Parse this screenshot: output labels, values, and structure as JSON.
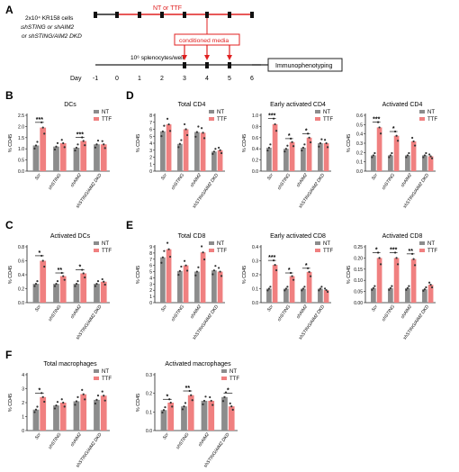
{
  "colors": {
    "nt": "#8c8c8c",
    "ttf": "#f08080",
    "timeline_red": "#e02020",
    "axis": "#222222"
  },
  "panel_letters": {
    "A": "A",
    "B": "B",
    "C": "C",
    "D": "D",
    "E": "E",
    "F": "F"
  },
  "schematic": {
    "cells_line1": "2x10⁴ KR158 cells",
    "cells_line2": "shSTING or shAIM2",
    "cells_line3": "or shSTING/AIM2 DKD",
    "treatment": "NT or TTF",
    "conditioned": "conditioned media",
    "splenocytes": "10⁶ splenocytes/well",
    "immuno": "Immunophenotyping",
    "day_label": "Day",
    "days": [
      "-1",
      "0",
      "1",
      "2",
      "3",
      "4",
      "5",
      "6"
    ]
  },
  "legend": {
    "nt": "NT",
    "ttf": "TTF"
  },
  "ylabel_pct": "% CD45",
  "categories": [
    "Scr",
    "shSTING",
    "shAIM2",
    "shSTING/AIM2 DKD"
  ],
  "chart_data": [
    {
      "id": "B1",
      "type": "bar",
      "title": "DCs",
      "ylabel": "% CD45",
      "ylim": [
        0,
        2.5
      ],
      "yticks": [
        "0.0",
        "0.5",
        "1.0",
        "1.5",
        "2.0",
        "2.5"
      ],
      "categories": [
        "Scr",
        "shSTING",
        "shAIM2",
        "shSTING/AIM2 DKD"
      ],
      "series": [
        {
          "name": "NT",
          "values": [
            1.15,
            1.1,
            1.05,
            1.2
          ]
        },
        {
          "name": "TTF",
          "values": [
            1.95,
            1.25,
            1.35,
            1.2
          ]
        }
      ],
      "significance": [
        {
          "group": 0,
          "label": "***"
        },
        {
          "group": 2,
          "label": "***"
        }
      ]
    },
    {
      "id": "C1",
      "type": "bar",
      "title": "Activated DCs",
      "ylabel": "% CD45",
      "ylim": [
        0,
        0.8
      ],
      "yticks": [
        "0.0",
        "0.2",
        "0.4",
        "0.6",
        "0.8"
      ],
      "categories": [
        "Scr",
        "shSTING",
        "shAIM2",
        "shSTING/AIM2 DKD"
      ],
      "series": [
        {
          "name": "NT",
          "values": [
            0.27,
            0.27,
            0.27,
            0.27
          ]
        },
        {
          "name": "TTF",
          "values": [
            0.6,
            0.38,
            0.42,
            0.3
          ]
        }
      ],
      "significance": [
        {
          "group": 0,
          "label": "*"
        },
        {
          "group": 1,
          "label": "**"
        },
        {
          "group": 2,
          "label": "*"
        }
      ]
    },
    {
      "id": "D1",
      "type": "bar",
      "title": "Total CD4",
      "ylabel": "% CD45",
      "ylim": [
        0,
        8
      ],
      "yticks": [
        "0",
        "1",
        "2",
        "3",
        "4",
        "5",
        "6",
        "7",
        "8"
      ],
      "categories": [
        "Scr",
        "shSTING",
        "shAIM2",
        "shSTING/AIM2 DKD"
      ],
      "series": [
        {
          "name": "NT",
          "values": [
            5.7,
            3.9,
            5.6,
            2.8
          ]
        },
        {
          "name": "TTF",
          "values": [
            6.7,
            6.0,
            5.5,
            3.0
          ]
        }
      ],
      "significance": []
    },
    {
      "id": "D2",
      "type": "bar",
      "title": "Early activated CD4",
      "ylabel": "% CD45",
      "ylim": [
        0,
        1.0
      ],
      "yticks": [
        "0.0",
        "0.2",
        "0.4",
        "0.6",
        "0.8",
        "1.0"
      ],
      "categories": [
        "Scr",
        "shSTING",
        "shAIM2",
        "shSTING/AIM2 DKD"
      ],
      "series": [
        {
          "name": "NT",
          "values": [
            0.42,
            0.4,
            0.42,
            0.5
          ]
        },
        {
          "name": "TTF",
          "values": [
            0.84,
            0.52,
            0.6,
            0.5
          ]
        }
      ],
      "significance": [
        {
          "group": 0,
          "label": "***"
        },
        {
          "group": 1,
          "label": "*"
        },
        {
          "group": 2,
          "label": "*"
        }
      ]
    },
    {
      "id": "D3",
      "type": "bar",
      "title": "Activated CD4",
      "ylabel": "% CD45",
      "ylim": [
        0,
        0.6
      ],
      "yticks": [
        "0.0",
        "0.1",
        "0.2",
        "0.3",
        "0.4",
        "0.5",
        "0.6"
      ],
      "categories": [
        "Scr",
        "shSTING",
        "shAIM2",
        "shSTING/AIM2 DKD"
      ],
      "series": [
        {
          "name": "NT",
          "values": [
            0.17,
            0.17,
            0.17,
            0.17
          ]
        },
        {
          "name": "TTF",
          "values": [
            0.47,
            0.38,
            0.32,
            0.16
          ]
        }
      ],
      "significance": [
        {
          "group": 0,
          "label": "***"
        },
        {
          "group": 1,
          "label": "*"
        }
      ]
    },
    {
      "id": "E1",
      "type": "bar",
      "title": "Total CD8",
      "ylabel": "% CD45",
      "ylim": [
        0,
        9
      ],
      "yticks": [
        "0",
        "1",
        "2",
        "3",
        "4",
        "5",
        "6",
        "7",
        "8",
        "9"
      ],
      "categories": [
        "Scr",
        "shSTING",
        "shAIM2",
        "shSTING/AIM2 DKD"
      ],
      "series": [
        {
          "name": "NT",
          "values": [
            7.3,
            5.1,
            5.0,
            5.2
          ]
        },
        {
          "name": "TTF",
          "values": [
            8.6,
            6.0,
            8.1,
            5.0
          ]
        }
      ],
      "significance": []
    },
    {
      "id": "E2",
      "type": "bar",
      "title": "Early activated CD8",
      "ylabel": "% CD45",
      "ylim": [
        0,
        0.4
      ],
      "yticks": [
        "0.0",
        "0.1",
        "0.2",
        "0.3",
        "0.4"
      ],
      "categories": [
        "Scr",
        "shSTING",
        "shAIM2",
        "shSTING/AIM2 DKD"
      ],
      "series": [
        {
          "name": "NT",
          "values": [
            0.1,
            0.1,
            0.1,
            0.1
          ]
        },
        {
          "name": "TTF",
          "values": [
            0.27,
            0.19,
            0.22,
            0.09
          ]
        }
      ],
      "significance": [
        {
          "group": 0,
          "label": "***"
        },
        {
          "group": 1,
          "label": "*"
        },
        {
          "group": 2,
          "label": "*"
        }
      ]
    },
    {
      "id": "E3",
      "type": "bar",
      "title": "Activated CD8",
      "ylabel": "% CD45",
      "ylim": [
        0,
        0.25
      ],
      "yticks": [
        "0.00",
        "0.05",
        "0.10",
        "0.15",
        "0.20",
        "0.25"
      ],
      "categories": [
        "Scr",
        "shSTING",
        "shAIM2",
        "shSTING/AIM2 DKD"
      ],
      "series": [
        {
          "name": "NT",
          "values": [
            0.065,
            0.065,
            0.065,
            0.06
          ]
        },
        {
          "name": "TTF",
          "values": [
            0.2,
            0.2,
            0.195,
            0.08
          ]
        }
      ],
      "significance": [
        {
          "group": 0,
          "label": "*"
        },
        {
          "group": 1,
          "label": "***"
        },
        {
          "group": 2,
          "label": "**"
        }
      ]
    },
    {
      "id": "F1",
      "type": "bar",
      "title": "Total macrophages",
      "ylabel": "% CD45",
      "ylim": [
        0,
        4
      ],
      "yticks": [
        "0",
        "1",
        "2",
        "3",
        "4"
      ],
      "categories": [
        "Scr",
        "shSTING",
        "shAIM2",
        "shSTING/AIM2 DKD"
      ],
      "series": [
        {
          "name": "NT",
          "values": [
            1.5,
            1.8,
            2.1,
            2.2
          ]
        },
        {
          "name": "TTF",
          "values": [
            2.4,
            2.0,
            2.6,
            2.5
          ]
        }
      ],
      "significance": [
        {
          "group": 0,
          "label": "*"
        }
      ]
    },
    {
      "id": "F2",
      "type": "bar",
      "title": "Activated macrophages",
      "ylabel": "% CD45",
      "ylim": [
        0,
        0.3
      ],
      "yticks": [
        "0.0",
        "0.1",
        "0.2",
        "0.3"
      ],
      "categories": [
        "Scr",
        "shSTING",
        "shAIM2",
        "shSTING/AIM2 DKD"
      ],
      "series": [
        {
          "name": "NT",
          "values": [
            0.11,
            0.13,
            0.16,
            0.18
          ]
        },
        {
          "name": "TTF",
          "values": [
            0.15,
            0.19,
            0.16,
            0.13
          ]
        }
      ],
      "significance": [
        {
          "group": 0,
          "label": "*"
        },
        {
          "group": 1,
          "label": "**"
        },
        {
          "group": 3,
          "label": "*"
        }
      ]
    }
  ]
}
